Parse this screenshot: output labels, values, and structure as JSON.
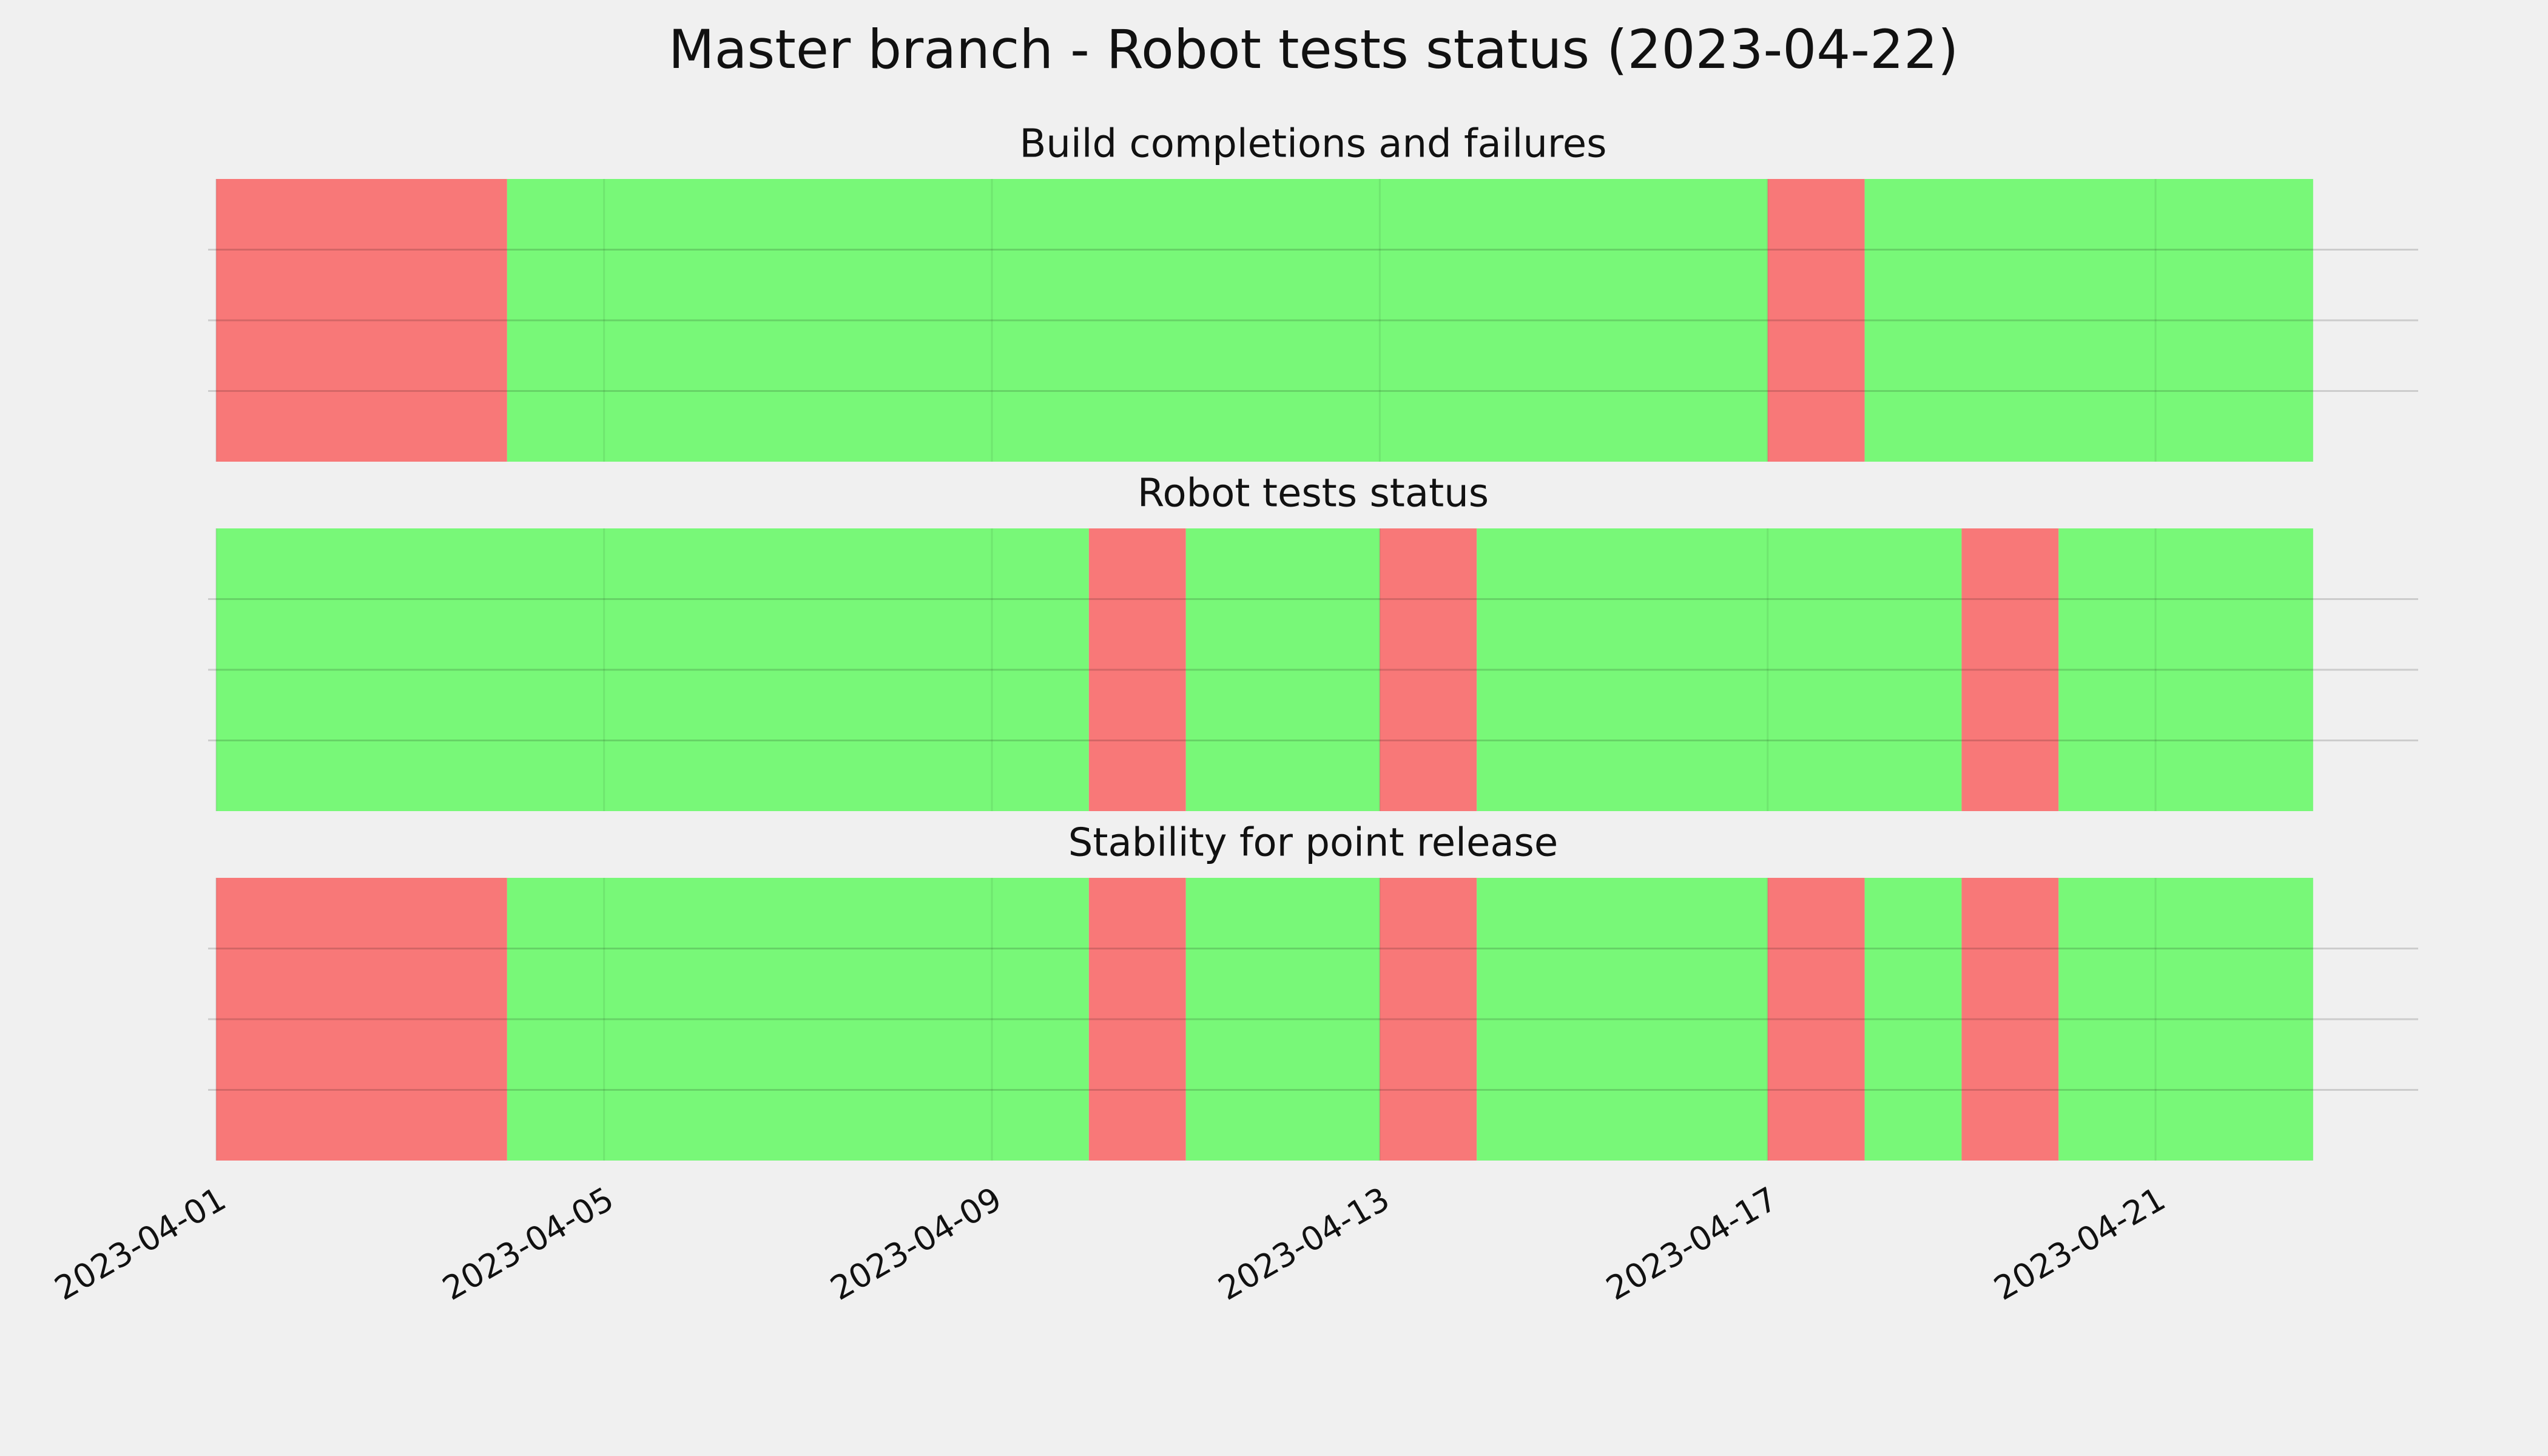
{
  "title": "Master branch - Robot tests status (2023-04-22)",
  "chart_data": [
    {
      "type": "timeline",
      "title": "Build completions and failures",
      "xlim": [
        "2023-03-31T22:00",
        "2023-04-23T17:00"
      ],
      "ylim": [
        0,
        1
      ],
      "yticks": [
        0.25,
        0.5,
        0.75
      ],
      "grid": true,
      "segments": [
        {
          "start": "2023-04-01",
          "end": "2023-04-04",
          "color": "#f87878"
        },
        {
          "start": "2023-04-04",
          "end": "2023-04-17",
          "color": "#78f878"
        },
        {
          "start": "2023-04-17",
          "end": "2023-04-18",
          "color": "#f87878"
        },
        {
          "start": "2023-04-18",
          "end": "2023-04-22T15:00",
          "color": "#78f878"
        }
      ]
    },
    {
      "type": "timeline",
      "title": "Robot tests status",
      "xlim": [
        "2023-03-31T22:00",
        "2023-04-23T17:00"
      ],
      "ylim": [
        0,
        1
      ],
      "yticks": [
        0.25,
        0.5,
        0.75
      ],
      "grid": true,
      "segments": [
        {
          "start": "2023-04-01",
          "end": "2023-04-10",
          "color": "#78f878"
        },
        {
          "start": "2023-04-10",
          "end": "2023-04-11",
          "color": "#f87878"
        },
        {
          "start": "2023-04-11",
          "end": "2023-04-13",
          "color": "#78f878"
        },
        {
          "start": "2023-04-13",
          "end": "2023-04-14",
          "color": "#f87878"
        },
        {
          "start": "2023-04-14",
          "end": "2023-04-19",
          "color": "#78f878"
        },
        {
          "start": "2023-04-19",
          "end": "2023-04-20",
          "color": "#f87878"
        },
        {
          "start": "2023-04-20",
          "end": "2023-04-22T15:00",
          "color": "#78f878"
        }
      ]
    },
    {
      "type": "timeline",
      "title": "Stability for point release",
      "xlim": [
        "2023-03-31T22:00",
        "2023-04-23T17:00"
      ],
      "ylim": [
        0,
        1
      ],
      "yticks": [
        0.25,
        0.5,
        0.75
      ],
      "grid": true,
      "xticks": [
        "2023-04-01",
        "2023-04-05",
        "2023-04-09",
        "2023-04-13",
        "2023-04-17",
        "2023-04-21"
      ],
      "segments": [
        {
          "start": "2023-04-01",
          "end": "2023-04-04",
          "color": "#f87878"
        },
        {
          "start": "2023-04-04",
          "end": "2023-04-10",
          "color": "#78f878"
        },
        {
          "start": "2023-04-10",
          "end": "2023-04-11",
          "color": "#f87878"
        },
        {
          "start": "2023-04-11",
          "end": "2023-04-13",
          "color": "#78f878"
        },
        {
          "start": "2023-04-13",
          "end": "2023-04-14",
          "color": "#f87878"
        },
        {
          "start": "2023-04-14",
          "end": "2023-04-17",
          "color": "#78f878"
        },
        {
          "start": "2023-04-17",
          "end": "2023-04-18",
          "color": "#f87878"
        },
        {
          "start": "2023-04-18",
          "end": "2023-04-19",
          "color": "#78f878"
        },
        {
          "start": "2023-04-19",
          "end": "2023-04-20",
          "color": "#f87878"
        },
        {
          "start": "2023-04-20",
          "end": "2023-04-22T15:00",
          "color": "#78f878"
        }
      ]
    }
  ]
}
